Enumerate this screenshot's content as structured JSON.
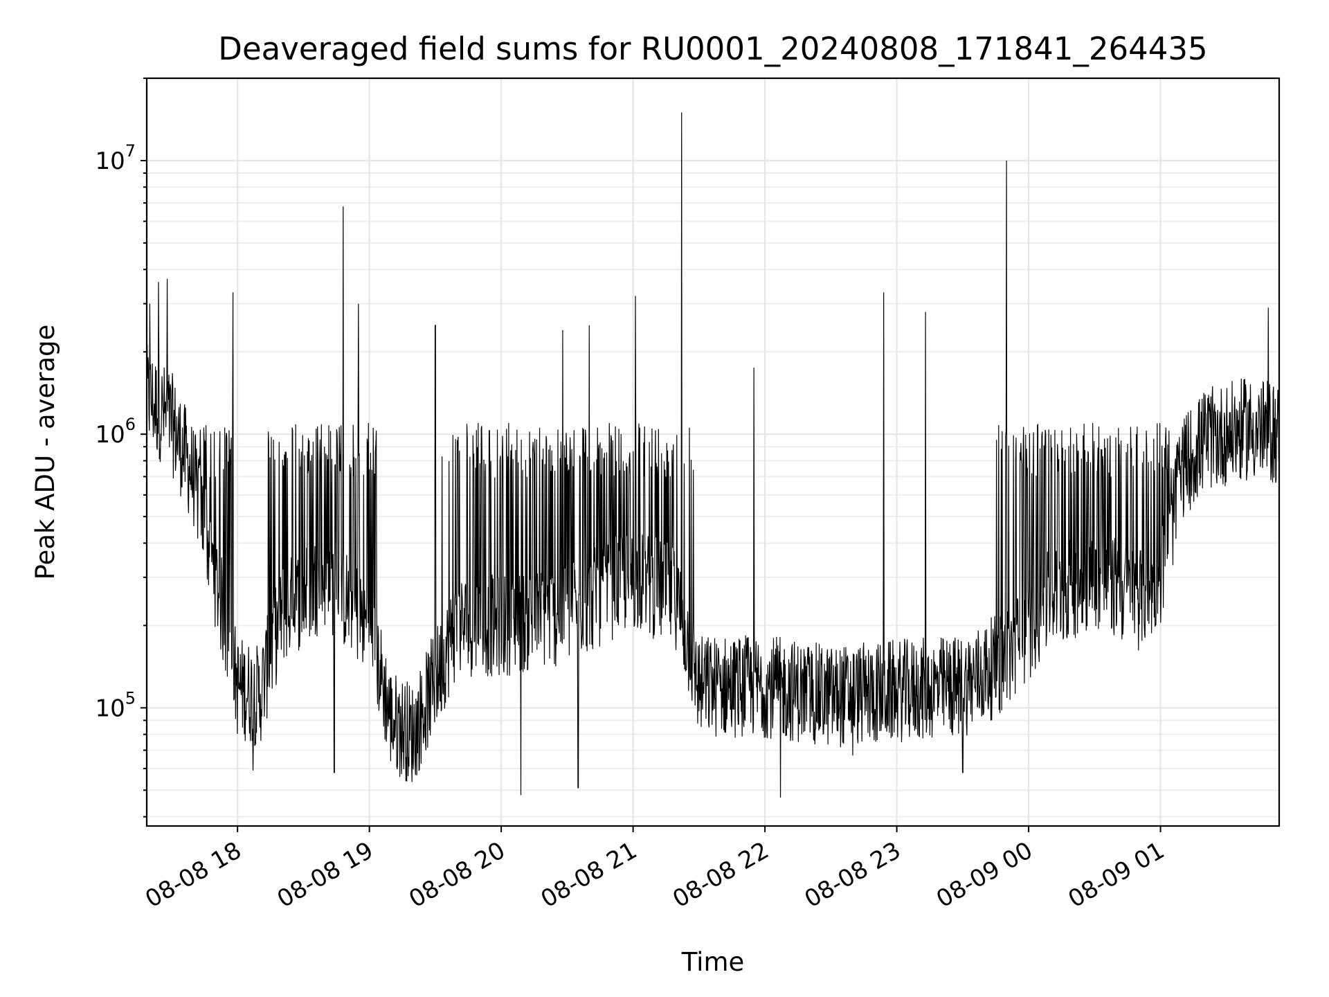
{
  "chart_data": {
    "type": "line",
    "title": "Deaveraged field sums for RU0001_20240808_171841_264435",
    "xlabel": "Time",
    "ylabel": "Peak ADU - average",
    "yscale": "log",
    "grid": true,
    "xlim": [
      "2024-08-08 17:18:41",
      "2024-08-09 01:54:00"
    ],
    "ylim": [
      37000,
      20000000
    ],
    "x_ticks": [
      {
        "value": "2024-08-08 18:00",
        "label": "08-08 18"
      },
      {
        "value": "2024-08-08 19:00",
        "label": "08-08 19"
      },
      {
        "value": "2024-08-08 20:00",
        "label": "08-08 20"
      },
      {
        "value": "2024-08-08 21:00",
        "label": "08-08 21"
      },
      {
        "value": "2024-08-08 22:00",
        "label": "08-08 22"
      },
      {
        "value": "2024-08-08 23:00",
        "label": "08-08 23"
      },
      {
        "value": "2024-08-09 00:00",
        "label": "08-09 00"
      },
      {
        "value": "2024-08-09 01:00",
        "label": "08-09 01"
      }
    ],
    "y_ticks": [
      {
        "value": 100000,
        "base": "10",
        "exp": "5"
      },
      {
        "value": 1000000,
        "base": "10",
        "exp": "6"
      },
      {
        "value": 10000000,
        "base": "10",
        "exp": "7"
      }
    ],
    "series_color": "#000000",
    "baseline_points": [
      {
        "t": "2024-08-08 17:18",
        "y": 1400000
      },
      {
        "t": "2024-08-08 17:30",
        "y": 1100000
      },
      {
        "t": "2024-08-08 17:40",
        "y": 700000
      },
      {
        "t": "2024-08-08 17:50",
        "y": 300000
      },
      {
        "t": "2024-08-08 18:00",
        "y": 120000
      },
      {
        "t": "2024-08-08 18:10",
        "y": 110000
      },
      {
        "t": "2024-08-08 18:20",
        "y": 220000
      },
      {
        "t": "2024-08-08 18:40",
        "y": 300000
      },
      {
        "t": "2024-08-08 19:00",
        "y": 200000
      },
      {
        "t": "2024-08-08 19:10",
        "y": 90000
      },
      {
        "t": "2024-08-08 19:20",
        "y": 80000
      },
      {
        "t": "2024-08-08 19:40",
        "y": 200000
      },
      {
        "t": "2024-08-08 20:00",
        "y": 200000
      },
      {
        "t": "2024-08-08 20:30",
        "y": 220000
      },
      {
        "t": "2024-08-08 21:00",
        "y": 300000
      },
      {
        "t": "2024-08-08 21:20",
        "y": 250000
      },
      {
        "t": "2024-08-08 21:30",
        "y": 120000
      },
      {
        "t": "2024-08-08 22:00",
        "y": 120000
      },
      {
        "t": "2024-08-08 22:30",
        "y": 110000
      },
      {
        "t": "2024-08-08 23:00",
        "y": 115000
      },
      {
        "t": "2024-08-08 23:30",
        "y": 120000
      },
      {
        "t": "2024-08-08 23:50",
        "y": 150000
      },
      {
        "t": "2024-08-09 00:10",
        "y": 250000
      },
      {
        "t": "2024-08-09 00:30",
        "y": 300000
      },
      {
        "t": "2024-08-09 00:50",
        "y": 250000
      },
      {
        "t": "2024-08-09 01:00",
        "y": 300000
      },
      {
        "t": "2024-08-09 01:10",
        "y": 750000
      },
      {
        "t": "2024-08-09 01:20",
        "y": 950000
      },
      {
        "t": "2024-08-09 01:40",
        "y": 1050000
      },
      {
        "t": "2024-08-09 01:54",
        "y": 1000000
      }
    ],
    "peaks": [
      {
        "t": "2024-08-08 17:20",
        "y": 3000000
      },
      {
        "t": "2024-08-08 17:24",
        "y": 3600000
      },
      {
        "t": "2024-08-08 17:28",
        "y": 3700000
      },
      {
        "t": "2024-08-08 17:58",
        "y": 3300000
      },
      {
        "t": "2024-08-08 18:48",
        "y": 6800000
      },
      {
        "t": "2024-08-08 18:55",
        "y": 3000000
      },
      {
        "t": "2024-08-08 19:30",
        "y": 2500000
      },
      {
        "t": "2024-08-08 20:28",
        "y": 2400000
      },
      {
        "t": "2024-08-08 20:40",
        "y": 2500000
      },
      {
        "t": "2024-08-08 21:01",
        "y": 3200000
      },
      {
        "t": "2024-08-08 21:22",
        "y": 15000000
      },
      {
        "t": "2024-08-08 21:55",
        "y": 1750000
      },
      {
        "t": "2024-08-08 22:54",
        "y": 3300000
      },
      {
        "t": "2024-08-08 23:13",
        "y": 2800000
      },
      {
        "t": "2024-08-08 23:50",
        "y": 10000000
      },
      {
        "t": "2024-08-09 01:49",
        "y": 2900000
      }
    ],
    "troughs": [
      {
        "t": "2024-08-08 18:07",
        "y": 59000
      },
      {
        "t": "2024-08-08 18:44",
        "y": 58000
      },
      {
        "t": "2024-08-08 19:18",
        "y": 61000
      },
      {
        "t": "2024-08-08 20:09",
        "y": 48000
      },
      {
        "t": "2024-08-08 20:35",
        "y": 51000
      },
      {
        "t": "2024-08-08 22:07",
        "y": 47000
      },
      {
        "t": "2024-08-08 22:40",
        "y": 67000
      },
      {
        "t": "2024-08-08 23:30",
        "y": 58000
      }
    ]
  }
}
